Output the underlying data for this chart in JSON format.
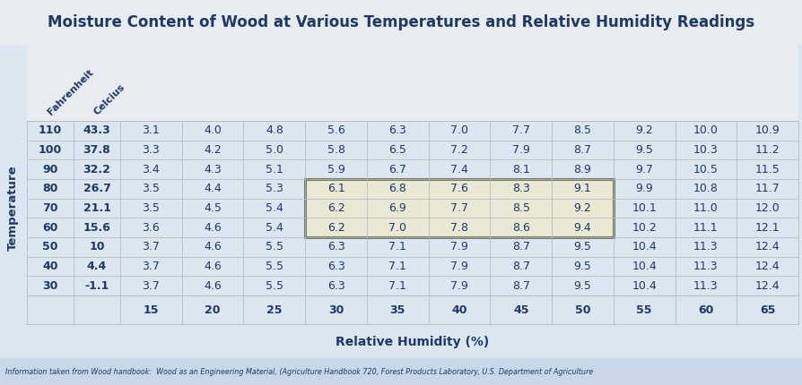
{
  "title": "Moisture Content of Wood at Various Temperatures and Relative Humidity Readings",
  "footer": "Information taken from Wood handbook:  Wood as an Engineering Material, (Agriculture Handbook 720, Forest Products Laboratory, U.S. Department of Agriculture",
  "col_headers": [
    "15",
    "20",
    "25",
    "30",
    "35",
    "40",
    "45",
    "50",
    "55",
    "60",
    "65"
  ],
  "row_headers_f": [
    "110",
    "100",
    "90",
    "80",
    "70",
    "60",
    "50",
    "40",
    "30"
  ],
  "row_headers_c": [
    "43.3",
    "37.8",
    "32.2",
    "26.7",
    "21.1",
    "15.6",
    "10",
    "4.4",
    "-1.1"
  ],
  "table_data": [
    [
      3.1,
      4.0,
      4.8,
      5.6,
      6.3,
      7.0,
      7.7,
      8.5,
      9.2,
      10.0,
      10.9
    ],
    [
      3.3,
      4.2,
      5.0,
      5.8,
      6.5,
      7.2,
      7.9,
      8.7,
      9.5,
      10.3,
      11.2
    ],
    [
      3.4,
      4.3,
      5.1,
      5.9,
      6.7,
      7.4,
      8.1,
      8.9,
      9.7,
      10.5,
      11.5
    ],
    [
      3.5,
      4.4,
      5.3,
      6.1,
      6.8,
      7.6,
      8.3,
      9.1,
      9.9,
      10.8,
      11.7
    ],
    [
      3.5,
      4.5,
      5.4,
      6.2,
      6.9,
      7.7,
      8.5,
      9.2,
      10.1,
      11.0,
      12.0
    ],
    [
      3.6,
      4.6,
      5.4,
      6.2,
      7.0,
      7.8,
      8.6,
      9.4,
      10.2,
      11.1,
      12.1
    ],
    [
      3.7,
      4.6,
      5.5,
      6.3,
      7.1,
      7.9,
      8.7,
      9.5,
      10.4,
      11.3,
      12.4
    ],
    [
      3.7,
      4.6,
      5.5,
      6.3,
      7.1,
      7.9,
      8.7,
      9.5,
      10.4,
      11.3,
      12.4
    ],
    [
      3.7,
      4.6,
      5.5,
      6.3,
      7.1,
      7.9,
      8.7,
      9.5,
      10.4,
      11.3,
      12.4
    ]
  ],
  "highlight_rows": [
    3,
    4,
    5
  ],
  "highlight_cols": [
    3,
    4,
    5,
    6,
    7
  ],
  "bg_color_outer": "#dce6f1",
  "bg_color_header_row": "#dde5ee",
  "bg_color_table_even": "#dce6f1",
  "bg_color_highlight": "#e8e8d4",
  "title_bg": "#e8ecf0",
  "footer_bg": "#c8d8e8",
  "col_header_bg": "#dce6f1",
  "text_color": "#1f3864",
  "ylabel": "Temperature",
  "xlabel": "Relative Humidity (%)"
}
